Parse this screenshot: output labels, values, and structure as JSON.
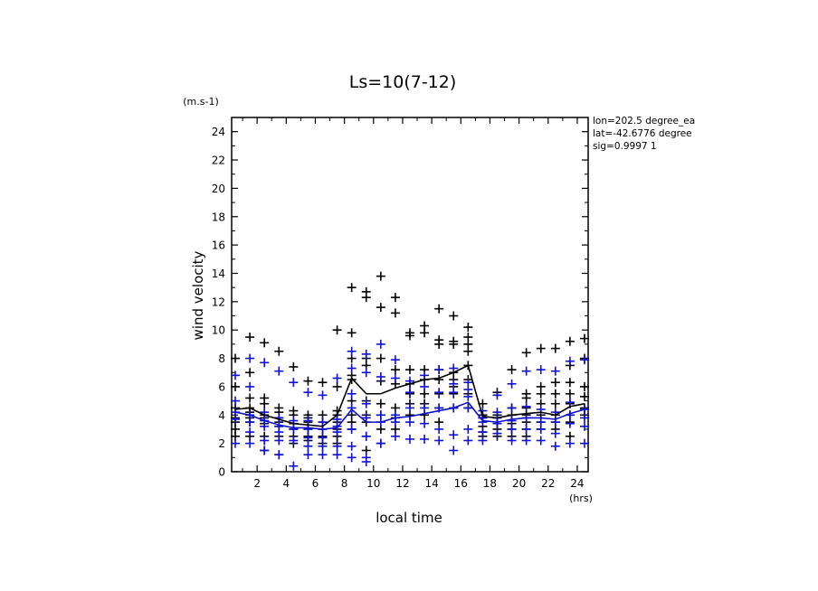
{
  "chart_data": {
    "type": "scatter",
    "title": "Ls=10(7-12)",
    "xlabel": "local time",
    "ylabel": "wind velocity",
    "x_unit": "(hrs)",
    "y_unit": "(m.s-1)",
    "xlim": [
      0.25,
      24.75
    ],
    "ylim": [
      0,
      25
    ],
    "x_ticks": [
      2,
      4,
      6,
      8,
      10,
      12,
      14,
      16,
      18,
      20,
      22,
      24
    ],
    "y_ticks": [
      0,
      2,
      4,
      6,
      8,
      10,
      12,
      14,
      16,
      18,
      20,
      22,
      24
    ],
    "grid": false,
    "annotations": [
      "lon=202.5 degree_ea",
      "lat=-42.6776 degree",
      "sig=0.9997 1"
    ],
    "colors": {
      "black_series": "#000000",
      "blue_series": "#1010d0"
    },
    "scatter_black": [
      {
        "x": 0.5,
        "y": [
          8.0,
          6.0,
          4.5,
          3.8,
          3.5,
          3.0,
          2.5
        ]
      },
      {
        "x": 1.5,
        "y": [
          9.5,
          7.0,
          5.2,
          4.5,
          4.2,
          3.8,
          3.5,
          2.5
        ]
      },
      {
        "x": 2.5,
        "y": [
          9.1,
          5.2,
          4.8,
          4.0,
          3.8,
          3.4,
          2.5,
          1.5
        ]
      },
      {
        "x": 3.5,
        "y": [
          8.5,
          4.5,
          4.2,
          3.8,
          3.5,
          3.2,
          2.5,
          1.2
        ]
      },
      {
        "x": 4.5,
        "y": [
          7.4,
          4.3,
          4.0,
          3.4,
          3.0,
          2.5,
          2.0
        ]
      },
      {
        "x": 5.5,
        "y": [
          6.4,
          4.0,
          3.8,
          3.5,
          3.0,
          2.5,
          2.2
        ]
      },
      {
        "x": 6.5,
        "y": [
          6.3,
          4.0,
          3.5,
          3.0,
          2.5,
          2.0
        ]
      },
      {
        "x": 7.5,
        "y": [
          10.0,
          6.0,
          4.3,
          4.0,
          3.5,
          3.0,
          2.5,
          2.0
        ]
      },
      {
        "x": 8.5,
        "y": [
          13.0,
          9.8,
          8.0,
          6.8,
          6.5,
          5.0,
          4.0,
          3.5,
          3.0
        ]
      },
      {
        "x": 9.5,
        "y": [
          12.7,
          12.3,
          8.0,
          7.5,
          5.0,
          4.0,
          3.5,
          2.5,
          1.5
        ]
      },
      {
        "x": 10.5,
        "y": [
          13.8,
          11.6,
          8.0,
          6.4,
          4.8,
          4.0,
          3.0,
          2.0
        ]
      },
      {
        "x": 11.5,
        "y": [
          12.3,
          11.2,
          7.2,
          6.2,
          4.5,
          3.8,
          3.0
        ]
      },
      {
        "x": 12.5,
        "y": [
          9.8,
          9.6,
          7.2,
          6.2,
          5.5,
          4.8,
          4.0
        ]
      },
      {
        "x": 13.5,
        "y": [
          10.3,
          9.8,
          7.2,
          6.5,
          5.5,
          4.8,
          4.0
        ]
      },
      {
        "x": 14.5,
        "y": [
          11.5,
          9.3,
          9.0,
          7.2,
          6.5,
          5.5,
          4.5,
          3.5
        ]
      },
      {
        "x": 15.5,
        "y": [
          11.0,
          9.2,
          9.0,
          7.0,
          6.5,
          6.0,
          5.5,
          4.5
        ]
      },
      {
        "x": 16.5,
        "y": [
          10.2,
          9.5,
          9.0,
          8.5,
          7.5,
          6.5,
          5.5,
          4.5
        ]
      },
      {
        "x": 17.5,
        "y": [
          4.8,
          4.0,
          3.8,
          3.2,
          2.8,
          2.5
        ]
      },
      {
        "x": 18.5,
        "y": [
          5.6,
          4.0,
          3.8,
          3.4,
          3.0,
          2.5
        ]
      },
      {
        "x": 19.5,
        "y": [
          7.2,
          4.5,
          4.0,
          3.4,
          3.0,
          2.5
        ]
      },
      {
        "x": 20.5,
        "y": [
          8.4,
          5.5,
          5.2,
          4.5,
          4.0,
          3.5,
          3.0,
          2.5
        ]
      },
      {
        "x": 21.5,
        "y": [
          8.7,
          6.0,
          5.5,
          4.8,
          4.0,
          3.5,
          3.0
        ]
      },
      {
        "x": 22.5,
        "y": [
          8.7,
          6.3,
          5.5,
          4.8,
          4.0,
          3.5,
          3.0
        ]
      },
      {
        "x": 23.5,
        "y": [
          9.2,
          7.5,
          6.3,
          5.5,
          4.8,
          4.0,
          3.5,
          2.5
        ]
      },
      {
        "x": 24.5,
        "y": [
          9.4,
          8.0,
          6.0,
          5.3,
          4.5,
          4.0
        ]
      }
    ],
    "scatter_blue": [
      {
        "x": 0.5,
        "y": [
          6.8,
          5.0,
          4.2,
          3.7,
          2.0
        ]
      },
      {
        "x": 1.5,
        "y": [
          8.0,
          6.0,
          4.0,
          3.5,
          2.8,
          2.0
        ]
      },
      {
        "x": 2.5,
        "y": [
          7.7,
          4.2,
          3.6,
          3.2,
          2.2,
          1.5
        ]
      },
      {
        "x": 3.5,
        "y": [
          7.1,
          3.8,
          3.2,
          2.8,
          2.2,
          1.2
        ]
      },
      {
        "x": 4.5,
        "y": [
          6.3,
          3.6,
          3.0,
          2.2,
          0.4
        ]
      },
      {
        "x": 5.5,
        "y": [
          5.6,
          3.6,
          3.0,
          2.4,
          1.8,
          1.2
        ]
      },
      {
        "x": 6.5,
        "y": [
          5.4,
          3.5,
          3.0,
          2.4,
          1.8,
          1.2
        ]
      },
      {
        "x": 7.5,
        "y": [
          6.6,
          3.7,
          3.2,
          2.8,
          1.8,
          1.2
        ]
      },
      {
        "x": 8.5,
        "y": [
          8.5,
          7.3,
          5.5,
          4.5,
          3.0,
          1.8,
          1.0
        ]
      },
      {
        "x": 9.5,
        "y": [
          8.3,
          7.0,
          4.8,
          3.8,
          2.5,
          1.0,
          0.7
        ]
      },
      {
        "x": 10.5,
        "y": [
          9.0,
          6.7,
          4.0,
          3.5,
          2.0
        ]
      },
      {
        "x": 11.5,
        "y": [
          7.9,
          6.6,
          4.0,
          3.5,
          2.5
        ]
      },
      {
        "x": 12.5,
        "y": [
          6.4,
          5.6,
          4.5,
          3.5,
          2.3
        ]
      },
      {
        "x": 13.5,
        "y": [
          6.8,
          6.0,
          4.5,
          3.4,
          2.3
        ]
      },
      {
        "x": 14.5,
        "y": [
          7.2,
          5.6,
          4.5,
          3.0,
          2.2
        ]
      },
      {
        "x": 15.5,
        "y": [
          7.3,
          6.2,
          5.6,
          4.5,
          2.6,
          1.5
        ]
      },
      {
        "x": 16.5,
        "y": [
          6.3,
          5.8,
          5.3,
          4.5,
          3.0,
          2.2
        ]
      },
      {
        "x": 17.5,
        "y": [
          4.3,
          3.8,
          3.5,
          2.8,
          2.2
        ]
      },
      {
        "x": 18.5,
        "y": [
          5.4,
          4.2,
          3.8,
          3.4,
          2.7
        ]
      },
      {
        "x": 19.5,
        "y": [
          6.2,
          4.5,
          3.6,
          3.0,
          2.2
        ]
      },
      {
        "x": 20.5,
        "y": [
          7.1,
          4.6,
          3.8,
          3.0,
          2.2
        ]
      },
      {
        "x": 21.5,
        "y": [
          7.2,
          4.4,
          3.5,
          3.0,
          2.2
        ]
      },
      {
        "x": 22.5,
        "y": [
          7.1,
          4.2,
          3.5,
          2.7,
          1.8
        ]
      },
      {
        "x": 23.5,
        "y": [
          7.8,
          4.9,
          4.0,
          3.4,
          2.0
        ]
      },
      {
        "x": 24.5,
        "y": [
          7.9,
          4.4,
          3.8,
          3.2,
          2.0
        ]
      }
    ],
    "series": [
      {
        "color": "#000000",
        "x": [
          0.5,
          1.5,
          2.5,
          3.5,
          4.5,
          5.5,
          6.5,
          7.5,
          8.5,
          9.5,
          10.5,
          11.5,
          12.5,
          13.5,
          14.5,
          15.5,
          16.5,
          17.5,
          18.5,
          19.5,
          20.5,
          21.5,
          22.5,
          23.5,
          24.5
        ],
        "values": [
          4.4,
          4.5,
          4.0,
          3.7,
          3.4,
          3.3,
          3.2,
          4.0,
          6.6,
          5.5,
          5.5,
          5.9,
          6.2,
          6.5,
          6.6,
          7.0,
          7.5,
          3.9,
          3.8,
          4.0,
          4.1,
          4.2,
          4.0,
          4.6,
          4.8
        ]
      },
      {
        "color": "#1010d0",
        "x": [
          0.5,
          1.5,
          2.5,
          3.5,
          4.5,
          5.5,
          6.5,
          7.5,
          8.5,
          9.5,
          10.5,
          11.5,
          12.5,
          13.5,
          14.5,
          15.5,
          16.5,
          17.5,
          18.5,
          19.5,
          20.5,
          21.5,
          22.5,
          23.5,
          24.5
        ],
        "values": [
          4.2,
          4.0,
          3.6,
          3.3,
          3.1,
          3.1,
          3.0,
          3.1,
          4.4,
          3.5,
          3.5,
          3.8,
          3.9,
          4.1,
          4.3,
          4.5,
          4.9,
          3.6,
          3.5,
          3.7,
          3.8,
          3.8,
          3.7,
          4.1,
          4.4
        ]
      }
    ]
  }
}
